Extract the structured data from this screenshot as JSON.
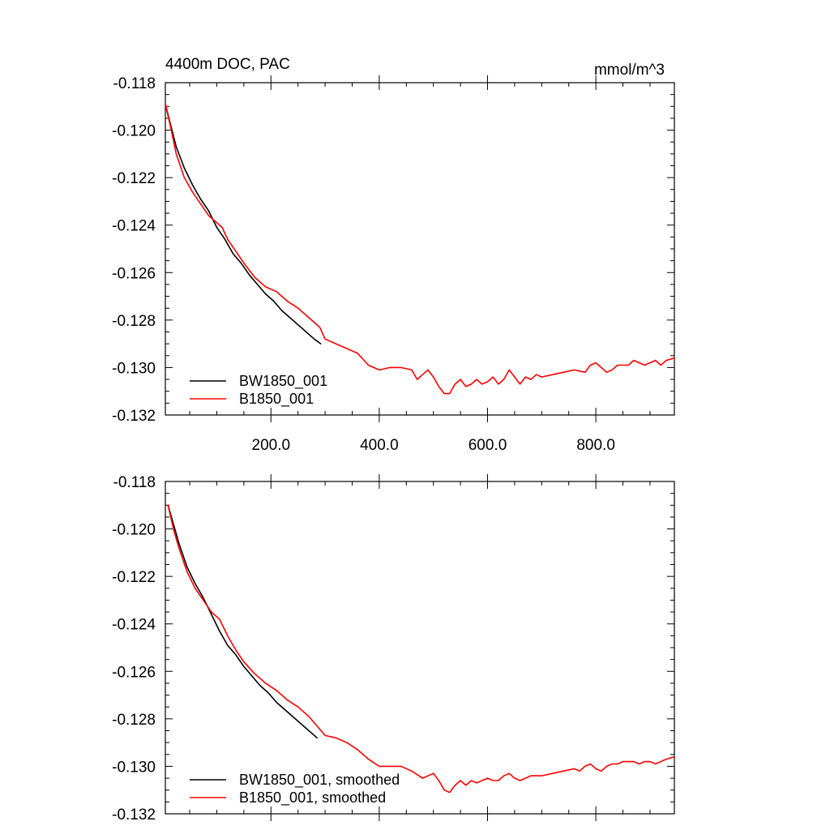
{
  "chart_data": [
    {
      "type": "line",
      "title": "4400m DOC, PAC",
      "units": "mmol/m^3",
      "xlim": [
        5,
        945
      ],
      "ylim": [
        -0.132,
        -0.118
      ],
      "xticks": [
        200,
        400,
        600,
        800
      ],
      "xtick_labels": [
        "200.0",
        "400.0",
        "600.0",
        "800.0"
      ],
      "yticks": [
        -0.118,
        -0.12,
        -0.122,
        -0.124,
        -0.126,
        -0.128,
        -0.13,
        -0.132
      ],
      "ytick_labels": [
        "-0.118",
        "-0.120",
        "-0.122",
        "-0.124",
        "-0.126",
        "-0.128",
        "-0.130",
        "-0.132"
      ],
      "legend": "bottom-left",
      "grid": false,
      "series": [
        {
          "name": "BW1850_001",
          "color": "#000000",
          "x": [
            5,
            15,
            25,
            40,
            55,
            70,
            85,
            100,
            115,
            130,
            145,
            160,
            175,
            190,
            205,
            220,
            235,
            250,
            265,
            280,
            292
          ],
          "y": [
            -0.1189,
            -0.1198,
            -0.1207,
            -0.1216,
            -0.1223,
            -0.1229,
            -0.1234,
            -0.1241,
            -0.1246,
            -0.1252,
            -0.1256,
            -0.1261,
            -0.1265,
            -0.1269,
            -0.1272,
            -0.1276,
            -0.1279,
            -0.1282,
            -0.1285,
            -0.1288,
            -0.129
          ]
        },
        {
          "name": "B1850_001",
          "color": "#ff0000",
          "x": [
            5,
            15,
            25,
            40,
            55,
            70,
            85,
            100,
            110,
            120,
            135,
            150,
            170,
            190,
            210,
            230,
            250,
            270,
            290,
            300,
            320,
            340,
            360,
            380,
            400,
            420,
            440,
            460,
            470,
            480,
            490,
            500,
            510,
            520,
            530,
            540,
            550,
            560,
            570,
            580,
            590,
            600,
            610,
            620,
            630,
            640,
            650,
            660,
            670,
            680,
            690,
            700,
            720,
            740,
            760,
            780,
            790,
            800,
            810,
            820,
            830,
            840,
            850,
            860,
            870,
            880,
            890,
            900,
            910,
            920,
            930,
            945
          ],
          "y": [
            -0.1189,
            -0.1199,
            -0.121,
            -0.122,
            -0.1226,
            -0.1231,
            -0.1236,
            -0.1239,
            -0.1241,
            -0.1246,
            -0.1251,
            -0.1256,
            -0.1262,
            -0.1266,
            -0.1268,
            -0.1272,
            -0.1275,
            -0.1279,
            -0.1283,
            -0.1288,
            -0.129,
            -0.1292,
            -0.1294,
            -0.1299,
            -0.1301,
            -0.13,
            -0.13,
            -0.1301,
            -0.1305,
            -0.1303,
            -0.1301,
            -0.1304,
            -0.1308,
            -0.1311,
            -0.1311,
            -0.1307,
            -0.1305,
            -0.1308,
            -0.1307,
            -0.1305,
            -0.1307,
            -0.1306,
            -0.1304,
            -0.1307,
            -0.1305,
            -0.1301,
            -0.1304,
            -0.1307,
            -0.1304,
            -0.1305,
            -0.1303,
            -0.1304,
            -0.1303,
            -0.1302,
            -0.1301,
            -0.1302,
            -0.1299,
            -0.1298,
            -0.13,
            -0.1302,
            -0.1301,
            -0.1299,
            -0.1299,
            -0.1299,
            -0.1297,
            -0.1298,
            -0.1299,
            -0.1298,
            -0.1297,
            -0.1299,
            -0.1297,
            -0.1296
          ]
        }
      ]
    },
    {
      "type": "line",
      "title": "",
      "units": "",
      "xlim": [
        5,
        945
      ],
      "ylim": [
        -0.132,
        -0.118
      ],
      "xticks": [
        200,
        400,
        600,
        800
      ],
      "xtick_labels": [],
      "yticks": [
        -0.118,
        -0.12,
        -0.122,
        -0.124,
        -0.126,
        -0.128,
        -0.13,
        -0.132
      ],
      "ytick_labels": [
        "-0.118",
        "-0.120",
        "-0.122",
        "-0.124",
        "-0.126",
        "-0.128",
        "-0.130",
        "-0.132"
      ],
      "legend": "bottom-left",
      "grid": false,
      "series": [
        {
          "name": "BW1850_001, smoothed",
          "color": "#000000",
          "x": [
            10,
            20,
            30,
            45,
            60,
            75,
            90,
            105,
            120,
            135,
            150,
            165,
            180,
            195,
            210,
            225,
            240,
            255,
            270,
            285
          ],
          "y": [
            -0.119,
            -0.1198,
            -0.1206,
            -0.1216,
            -0.1223,
            -0.1229,
            -0.1236,
            -0.1243,
            -0.1249,
            -0.1253,
            -0.1258,
            -0.1262,
            -0.1266,
            -0.1269,
            -0.1273,
            -0.1276,
            -0.1279,
            -0.1282,
            -0.1285,
            -0.1288
          ]
        },
        {
          "name": "B1850_001, smoothed",
          "color": "#ff0000",
          "x": [
            10,
            20,
            30,
            45,
            60,
            75,
            90,
            105,
            120,
            135,
            150,
            170,
            190,
            210,
            230,
            250,
            270,
            285,
            300,
            320,
            340,
            360,
            380,
            400,
            420,
            440,
            460,
            480,
            500,
            510,
            520,
            530,
            540,
            550,
            560,
            570,
            580,
            590,
            600,
            610,
            620,
            630,
            640,
            650,
            660,
            670,
            680,
            700,
            720,
            740,
            760,
            770,
            780,
            790,
            800,
            810,
            820,
            830,
            840,
            850,
            860,
            870,
            880,
            890,
            900,
            910,
            920,
            930,
            945
          ],
          "y": [
            -0.119,
            -0.12,
            -0.1208,
            -0.1218,
            -0.1225,
            -0.123,
            -0.1235,
            -0.1238,
            -0.1245,
            -0.1251,
            -0.1256,
            -0.1261,
            -0.1265,
            -0.1268,
            -0.1272,
            -0.1275,
            -0.1279,
            -0.1283,
            -0.1287,
            -0.1288,
            -0.129,
            -0.1293,
            -0.1297,
            -0.13,
            -0.13,
            -0.13,
            -0.1302,
            -0.1305,
            -0.1303,
            -0.1306,
            -0.131,
            -0.1311,
            -0.1308,
            -0.1306,
            -0.1308,
            -0.1306,
            -0.1307,
            -0.1306,
            -0.1305,
            -0.1306,
            -0.1306,
            -0.1304,
            -0.1303,
            -0.1305,
            -0.1306,
            -0.1305,
            -0.1304,
            -0.1304,
            -0.1303,
            -0.1302,
            -0.1301,
            -0.1302,
            -0.13,
            -0.1299,
            -0.1301,
            -0.1302,
            -0.13,
            -0.1299,
            -0.1299,
            -0.1298,
            -0.1298,
            -0.1298,
            -0.1299,
            -0.1298,
            -0.1298,
            -0.1299,
            -0.1298,
            -0.1297,
            -0.1296
          ]
        }
      ]
    }
  ]
}
